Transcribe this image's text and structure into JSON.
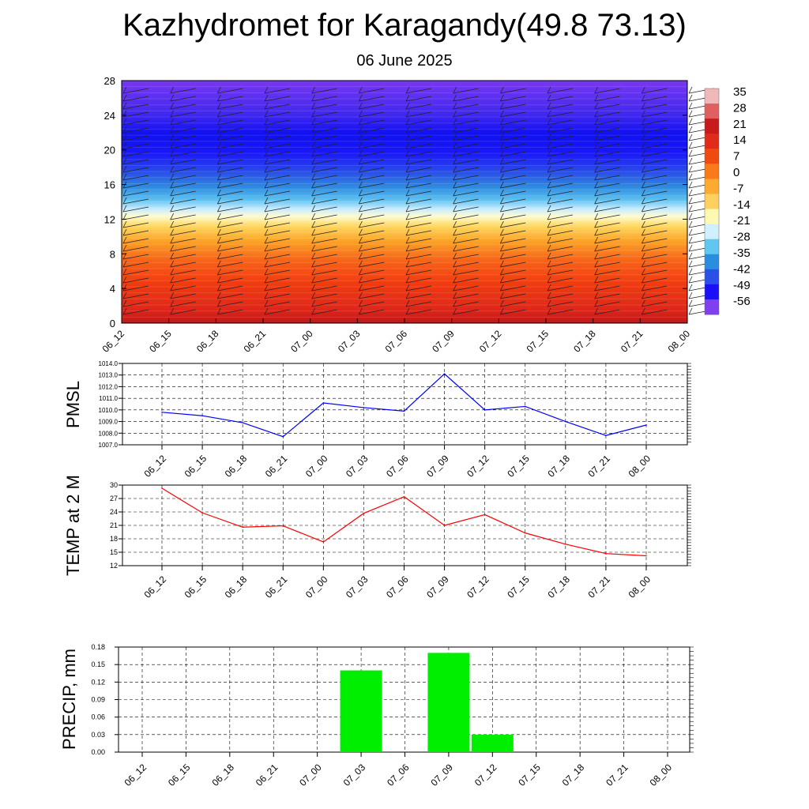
{
  "header": {
    "title": "Kazhydromet for Karagandy(49.8 73.13)",
    "date": "06 June 2025"
  },
  "chart_data": [
    {
      "type": "heatmap",
      "x_ticks": [
        "06_12",
        "06_15",
        "06_18",
        "06_21",
        "07_00",
        "07_03",
        "07_06",
        "07_09",
        "07_12",
        "07_15",
        "07_18",
        "07_21",
        "08_00"
      ],
      "y_ticks": [
        0,
        4,
        8,
        12,
        16,
        20,
        24,
        28
      ],
      "ylim": [
        0,
        28
      ],
      "colorbar_labels": [
        35,
        28,
        21,
        14,
        7,
        0,
        -7,
        -14,
        -21,
        -28,
        -35,
        -42,
        -49,
        -56
      ],
      "colorbar_colors": [
        "#f0b8b8",
        "#e06060",
        "#c81a1a",
        "#e02a1a",
        "#f04a10",
        "#f87a18",
        "#fcaa30",
        "#fed060",
        "#fff8b0",
        "#d0f0ff",
        "#60c8f0",
        "#2a8ee0",
        "#2a50e8",
        "#1a10f8",
        "#8040f0"
      ]
    },
    {
      "type": "line",
      "ylabel": "PMSL",
      "x": [
        "06_12",
        "06_15",
        "06_18",
        "06_21",
        "07_00",
        "07_03",
        "07_06",
        "07_09",
        "07_12",
        "07_15",
        "07_18",
        "07_21",
        "08_00"
      ],
      "y_ticks": [
        "1007.0",
        "1008.0",
        "1009.0",
        "1010.0",
        "1011.0",
        "1012.0",
        "1013.0",
        "1014.0"
      ],
      "ylim": [
        1007,
        1014
      ],
      "series": [
        {
          "values": [
            1009.8,
            1009.5,
            1008.9,
            1007.7,
            1010.6,
            1010.2,
            1009.9,
            1013.1,
            1010.0,
            1010.3,
            1009.0,
            1007.8,
            1008.7
          ],
          "color": "#0000ff"
        }
      ]
    },
    {
      "type": "line",
      "ylabel": "TEMP at 2 M",
      "x": [
        "06_12",
        "06_15",
        "06_18",
        "06_21",
        "07_00",
        "07_03",
        "07_06",
        "07_09",
        "07_12",
        "07_15",
        "07_18",
        "07_21",
        "08_00"
      ],
      "y_ticks": [
        "12",
        "15",
        "18",
        "21",
        "24",
        "27",
        "30"
      ],
      "ylim": [
        12,
        30
      ],
      "series": [
        {
          "values": [
            29.3,
            23.8,
            20.6,
            20.9,
            17.3,
            23.7,
            27.4,
            21.0,
            23.4,
            19.3,
            16.8,
            14.7,
            14.2
          ],
          "color": "#ff0000"
        }
      ]
    },
    {
      "type": "bar",
      "ylabel": "PRECIP, mm",
      "categories": [
        "06_12",
        "06_15",
        "06_18",
        "06_21",
        "07_00",
        "07_03",
        "07_06",
        "07_09",
        "07_12",
        "07_15",
        "07_18",
        "07_21",
        "08_00"
      ],
      "y_ticks": [
        "0.00",
        "0.03",
        "0.06",
        "0.09",
        "0.12",
        "0.15",
        "0.18"
      ],
      "ylim": [
        0,
        0.18
      ],
      "values": [
        0,
        0,
        0,
        0,
        0,
        0.14,
        0,
        0.17,
        0.03,
        0,
        0,
        0,
        0
      ],
      "bar_color": "#00ee00"
    }
  ]
}
